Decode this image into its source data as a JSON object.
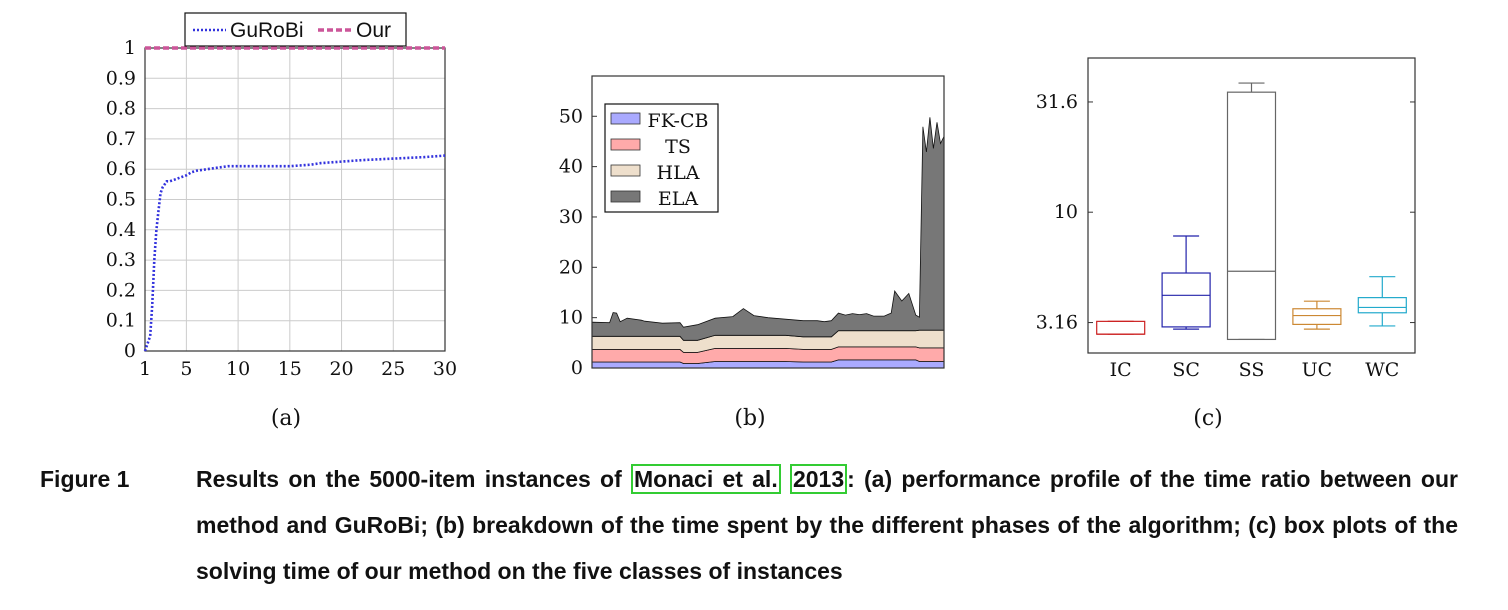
{
  "chart_data": [
    {
      "type": "line",
      "xlim": [
        1,
        30
      ],
      "ylim": [
        0,
        1
      ],
      "xticks": [
        "1",
        "5",
        "10",
        "15",
        "20",
        "25",
        "30"
      ],
      "yticks": [
        "0",
        "0.1",
        "0.2",
        "0.3",
        "0.4",
        "0.5",
        "0.6",
        "0.7",
        "0.8",
        "0.9",
        "1"
      ],
      "grid": true,
      "legend_position": "top",
      "series": [
        {
          "name": "GuRoBi",
          "color": "#3333dd",
          "style": "dotted",
          "x": [
            1,
            1.2,
            1.5,
            1.7,
            1.9,
            2.1,
            2.3,
            2.5,
            2.7,
            2.9,
            3.1,
            3.4,
            3.8,
            4.2,
            5,
            5.5,
            6,
            7,
            8,
            9,
            10,
            12,
            15,
            17,
            18,
            20,
            22,
            25,
            28,
            30
          ],
          "y": [
            0.0,
            0.02,
            0.05,
            0.15,
            0.3,
            0.4,
            0.46,
            0.52,
            0.54,
            0.55,
            0.56,
            0.56,
            0.565,
            0.57,
            0.58,
            0.59,
            0.595,
            0.6,
            0.605,
            0.61,
            0.61,
            0.61,
            0.61,
            0.615,
            0.62,
            0.625,
            0.63,
            0.635,
            0.64,
            0.645
          ]
        },
        {
          "name": "Our",
          "color": "#cc5599",
          "style": "dashed",
          "x": [
            1,
            30
          ],
          "y": [
            1,
            1
          ]
        }
      ]
    },
    {
      "type": "area",
      "stacked": true,
      "xlim": [
        0,
        100
      ],
      "ylim": [
        0,
        58
      ],
      "yticks": [
        "0",
        "10",
        "20",
        "30",
        "40",
        "50"
      ],
      "legend_position": "top-left",
      "x": [
        0,
        5,
        6,
        7,
        8,
        10,
        14,
        15,
        20,
        25,
        26,
        30,
        35,
        40,
        43,
        46,
        50,
        55,
        60,
        64,
        66,
        68,
        70,
        72,
        74,
        76,
        78,
        80,
        83,
        85,
        86,
        88,
        90,
        92,
        93,
        94,
        95,
        96,
        97,
        98,
        99,
        100
      ],
      "series": [
        {
          "name": "FK-CB",
          "color": "#aaaaff",
          "values": [
            1.2,
            1.2,
            1.2,
            1.2,
            1.2,
            1.2,
            1.2,
            1.2,
            1.2,
            1.2,
            0.9,
            0.9,
            1.3,
            1.3,
            1.3,
            1.3,
            1.3,
            1.3,
            1.2,
            1.2,
            1.2,
            1.2,
            1.6,
            1.6,
            1.6,
            1.6,
            1.6,
            1.6,
            1.6,
            1.6,
            1.6,
            1.6,
            1.6,
            1.6,
            1.3,
            1.3,
            1.3,
            1.3,
            1.3,
            1.3,
            1.3,
            1.3
          ]
        },
        {
          "name": "TS",
          "color": "#ffaaaa",
          "values": [
            2.5,
            2.5,
            2.5,
            2.5,
            2.5,
            2.5,
            2.5,
            2.5,
            2.5,
            2.5,
            2.2,
            2.2,
            2.6,
            2.6,
            2.6,
            2.6,
            2.6,
            2.6,
            2.5,
            2.5,
            2.5,
            2.5,
            2.6,
            2.6,
            2.6,
            2.6,
            2.6,
            2.6,
            2.6,
            2.6,
            2.6,
            2.6,
            2.6,
            2.6,
            2.7,
            2.7,
            2.7,
            2.7,
            2.7,
            2.7,
            2.7,
            2.7
          ]
        },
        {
          "name": "HLA",
          "color": "#eedfcc",
          "values": [
            2.6,
            2.6,
            2.6,
            2.6,
            2.6,
            2.6,
            2.6,
            2.6,
            2.6,
            2.6,
            2.4,
            2.4,
            2.6,
            2.6,
            2.6,
            2.6,
            2.6,
            2.6,
            2.5,
            2.5,
            2.5,
            2.5,
            3.2,
            3.2,
            3.2,
            3.2,
            3.2,
            3.2,
            3.2,
            3.2,
            3.2,
            3.2,
            3.2,
            3.2,
            3.5,
            3.5,
            3.5,
            3.5,
            3.5,
            3.5,
            3.5,
            3.5
          ]
        },
        {
          "name": "ELA",
          "color": "#777777",
          "values": [
            2.8,
            2.7,
            4.7,
            4.6,
            2.9,
            3.6,
            3.2,
            3.0,
            2.6,
            2.7,
            2.6,
            3.1,
            3.4,
            3.7,
            5.3,
            3.9,
            3.5,
            3.2,
            3.2,
            3.2,
            3.0,
            3.2,
            3.5,
            3.1,
            3.4,
            3.2,
            3.4,
            2.9,
            2.9,
            3.5,
            7.9,
            5.9,
            7.4,
            3.1,
            2.6,
            40.4,
            35.4,
            42.3,
            36.1,
            41.3,
            37.1,
            38.5
          ]
        }
      ]
    },
    {
      "type": "box",
      "scale": "log",
      "ylim": [
        2.3,
        50
      ],
      "yticks": [
        "3.16",
        "10",
        "31.6"
      ],
      "categories": [
        "IC",
        "SC",
        "SS",
        "UC",
        "WC"
      ],
      "colors": [
        "#cc2222",
        "#2222aa",
        "#666666",
        "#cc8833",
        "#22aacc"
      ],
      "boxes": [
        {
          "whisker_low": 2.8,
          "q1": 2.8,
          "median": 2.8,
          "q3": 3.2,
          "whisker_high": 3.2
        },
        {
          "whisker_low": 2.95,
          "q1": 3.02,
          "median": 4.2,
          "q3": 5.3,
          "whisker_high": 7.8
        },
        {
          "whisker_low": 2.65,
          "q1": 2.65,
          "median": 5.4,
          "q3": 35.0,
          "whisker_high": 38.5
        },
        {
          "whisker_low": 2.95,
          "q1": 3.1,
          "median": 3.4,
          "q3": 3.65,
          "whisker_high": 3.95
        },
        {
          "whisker_low": 3.05,
          "q1": 3.5,
          "median": 3.7,
          "q3": 4.1,
          "whisker_high": 5.1
        }
      ]
    }
  ],
  "panels": {
    "a_label": "(a)",
    "b_label": "(b)",
    "c_label": "(c)"
  },
  "caption": {
    "label": "Figure 1",
    "text_before": "Results on the 5000-item instances of ",
    "cite_author": "Monaci et al.",
    "cite_year": "2013",
    "text_after": ": (a) performance profile of the time ratio between our method and GuRoBi; (b) breakdown of the time spent by the different phases of the algorithm; (c) box plots of the solving time of our method on the five classes of instances"
  }
}
